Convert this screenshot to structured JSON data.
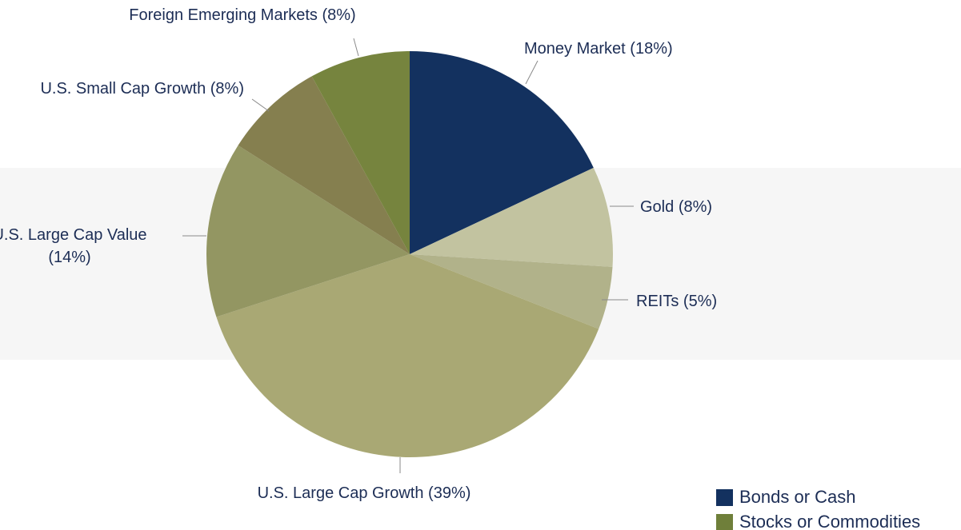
{
  "chart_data": {
    "type": "pie",
    "categories": [
      "Money Market",
      "Gold",
      "REITs",
      "U.S. Large Cap Growth",
      "U.S. Large Cap Value",
      "U.S. Small Cap Growth",
      "Foreign Emerging Markets"
    ],
    "values": [
      18,
      8,
      5,
      39,
      14,
      8,
      8
    ],
    "value_labels": [
      "(18%)",
      "(8%)",
      "(5%)",
      "(39%)",
      "(14%)",
      "(8%)",
      "(8%)"
    ],
    "colors": [
      "#13315f",
      "#c2c3a0",
      "#b1b28a",
      "#a9a874",
      "#939662",
      "#857f4f",
      "#76843e"
    ],
    "legend": [
      {
        "name": "Bonds or Cash",
        "color": "#13315f"
      },
      {
        "name": "Stocks or Commodities",
        "color": "#6f7f3a"
      }
    ]
  }
}
